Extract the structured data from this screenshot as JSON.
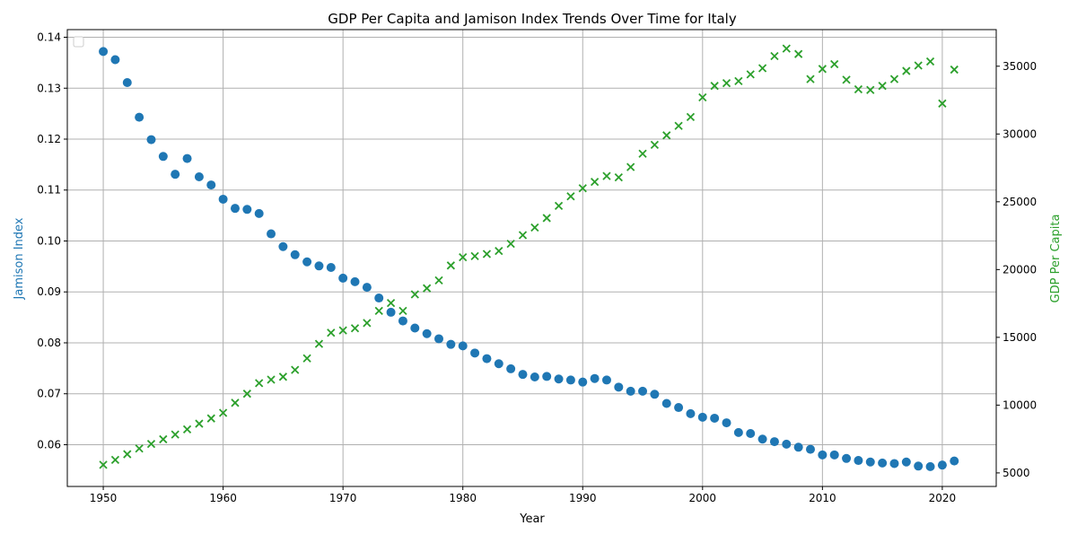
{
  "chart_data": {
    "type": "scatter",
    "title": "GDP Per Capita and Jamison Index Trends Over Time for Italy",
    "xlabel": "Year",
    "ylabel_left": "Jamison Index",
    "ylabel_right": "GDP Per Capita",
    "xlim": [
      1947,
      2024.5
    ],
    "ylim_left": [
      0.0518,
      0.1415
    ],
    "ylim_right": [
      4000,
      37700
    ],
    "x_ticks": [
      1950,
      1960,
      1970,
      1980,
      1990,
      2000,
      2010,
      2020
    ],
    "y_left_ticks": [
      "0.06",
      "0.07",
      "0.08",
      "0.09",
      "0.10",
      "0.11",
      "0.12",
      "0.13",
      "0.14"
    ],
    "y_right_ticks": [
      5000,
      10000,
      15000,
      20000,
      25000,
      30000,
      35000
    ],
    "grid": true,
    "legend": "upper-left (empty)",
    "colors": {
      "jamison": "#1f77b4",
      "gdp": "#2ca02c"
    },
    "x": [
      1950,
      1951,
      1952,
      1953,
      1954,
      1955,
      1956,
      1957,
      1958,
      1959,
      1960,
      1961,
      1962,
      1963,
      1964,
      1965,
      1966,
      1967,
      1968,
      1969,
      1970,
      1971,
      1972,
      1973,
      1974,
      1975,
      1976,
      1977,
      1978,
      1979,
      1980,
      1981,
      1982,
      1983,
      1984,
      1985,
      1986,
      1987,
      1988,
      1989,
      1990,
      1991,
      1992,
      1993,
      1994,
      1995,
      1996,
      1997,
      1998,
      1999,
      2000,
      2001,
      2002,
      2003,
      2004,
      2005,
      2006,
      2007,
      2008,
      2009,
      2010,
      2011,
      2012,
      2013,
      2014,
      2015,
      2016,
      2017,
      2018,
      2019,
      2020,
      2021
    ],
    "series": [
      {
        "axis": "left",
        "marker": "circle",
        "values": [
          0.1372,
          0.1356,
          0.1311,
          0.1243,
          0.1199,
          0.1166,
          0.1131,
          0.1162,
          0.1126,
          0.111,
          0.1082,
          0.1064,
          0.1062,
          0.1054,
          0.1014,
          0.0989,
          0.0973,
          0.0959,
          0.0951,
          0.0948,
          0.0927,
          0.092,
          0.0909,
          0.0888,
          0.086,
          0.0843,
          0.0829,
          0.0818,
          0.0808,
          0.0797,
          0.0794,
          0.078,
          0.0769,
          0.0759,
          0.0749,
          0.0738,
          0.0733,
          0.0734,
          0.0729,
          0.0727,
          0.0723,
          0.073,
          0.0727,
          0.0713,
          0.0705,
          0.0705,
          0.0699,
          0.0681,
          0.0673,
          0.0661,
          0.0654,
          0.0652,
          0.0643,
          0.0624,
          0.0622,
          0.0611,
          0.0606,
          0.0601,
          0.0595,
          0.0591,
          0.058,
          0.058,
          0.0573,
          0.0569,
          0.0566,
          0.0564,
          0.0563,
          0.0566,
          0.0558,
          0.0557,
          0.056,
          0.0568
        ]
      },
      {
        "axis": "right",
        "marker": "x",
        "values": [
          5600,
          5960,
          6380,
          6800,
          7140,
          7480,
          7830,
          8210,
          8630,
          9020,
          9430,
          10170,
          10840,
          11620,
          11880,
          12090,
          12600,
          13450,
          14520,
          15340,
          15510,
          15670,
          16060,
          16950,
          17530,
          16950,
          18170,
          18620,
          19200,
          20300,
          20910,
          20990,
          21150,
          21370,
          21900,
          22540,
          23100,
          23800,
          24700,
          25400,
          26000,
          26470,
          26900,
          26800,
          27560,
          28550,
          29200,
          29900,
          30600,
          31250,
          32700,
          33550,
          33750,
          33900,
          34400,
          34850,
          35750,
          36300,
          35900,
          34050,
          34800,
          35150,
          34000,
          33300,
          33250,
          33550,
          34050,
          34650,
          35050,
          35350,
          32250,
          34750
        ]
      }
    ]
  }
}
